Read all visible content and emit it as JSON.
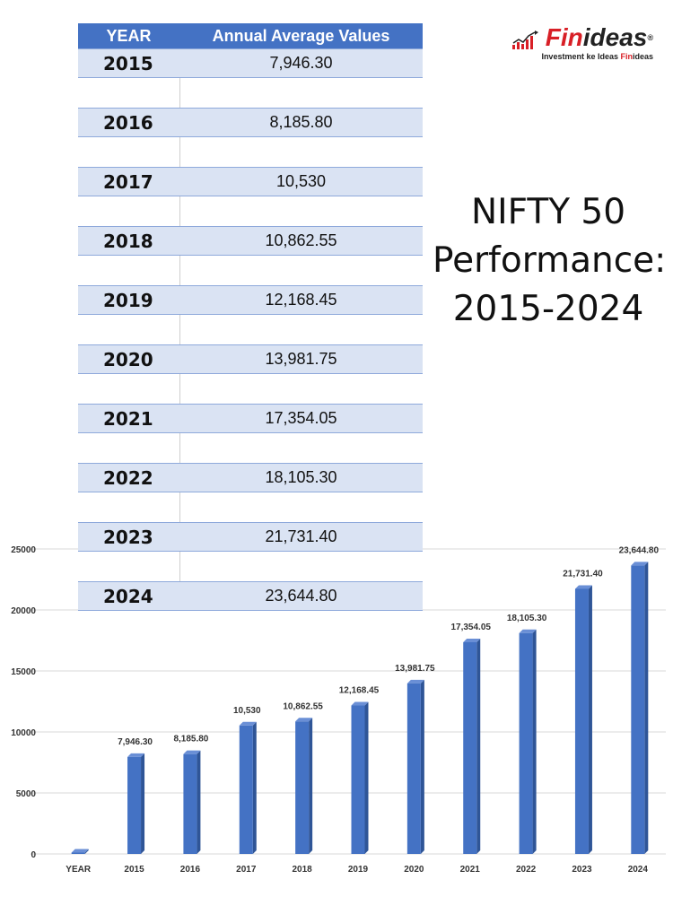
{
  "table": {
    "header": {
      "year": "YEAR",
      "value": "Annual Average Values"
    },
    "rows": [
      {
        "year": "2015",
        "value": "7,946.30"
      },
      {
        "year": "2016",
        "value": "8,185.80"
      },
      {
        "year": "2017",
        "value": "10,530"
      },
      {
        "year": "2018",
        "value": "10,862.55"
      },
      {
        "year": "2019",
        "value": "12,168.45"
      },
      {
        "year": "2020",
        "value": "13,981.75"
      },
      {
        "year": "2021",
        "value": "17,354.05"
      },
      {
        "year": "2022",
        "value": "18,105.30"
      },
      {
        "year": "2023",
        "value": "21,731.40"
      },
      {
        "year": "2024",
        "value": "23,644.80"
      }
    ]
  },
  "brand": {
    "logo_fin": "Fin",
    "logo_ideas": "ideas",
    "reg": "®",
    "tagline_prefix": "Investment ke Ideas ",
    "tagline_fin": "Fin",
    "tagline_ideas": "ideas",
    "accent_color": "#d81f26"
  },
  "headline": {
    "line1": "NIFTY 50",
    "line2": "Performance:",
    "line3": "2015-2024"
  },
  "chart_data": {
    "type": "bar",
    "categories": [
      "YEAR",
      "2015",
      "2016",
      "2017",
      "2018",
      "2019",
      "2020",
      "2021",
      "2022",
      "2023",
      "2024"
    ],
    "values": [
      0,
      7946.3,
      8185.8,
      10530,
      10862.55,
      12168.45,
      13981.75,
      17354.05,
      18105.3,
      21731.4,
      23644.8
    ],
    "data_labels": [
      "",
      "7,946.30",
      "8,185.80",
      "10,530",
      "10,862.55",
      "12,168.45",
      "13,981.75",
      "17,354.05",
      "18,105.30",
      "21,731.40",
      "23,644.80"
    ],
    "yticks": [
      0,
      5000,
      10000,
      15000,
      20000,
      25000
    ],
    "ylim": [
      0,
      25000
    ],
    "grid": true,
    "bar_color": "#4472c4"
  }
}
